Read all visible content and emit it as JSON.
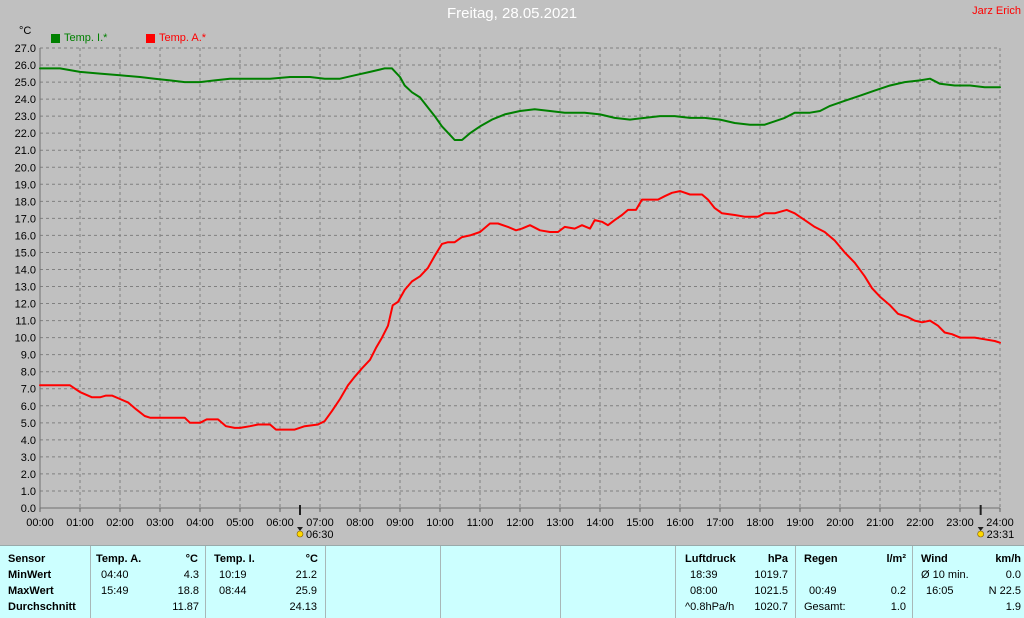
{
  "author": "Jarz Erich",
  "chart_data": {
    "type": "line",
    "title": "Freitag, 28.05.2021",
    "xlabel": "",
    "ylabel": "°C",
    "ylim": [
      0,
      27
    ],
    "xlim": [
      "00:00",
      "24:00"
    ],
    "grid": true,
    "legend": "top-left",
    "x_ticks": [
      "00:00",
      "01:00",
      "02:00",
      "03:00",
      "04:00",
      "05:00",
      "06:00",
      "07:00",
      "08:00",
      "09:00",
      "10:00",
      "11:00",
      "12:00",
      "13:00",
      "14:00",
      "15:00",
      "16:00",
      "17:00",
      "18:00",
      "19:00",
      "20:00",
      "21:00",
      "22:00",
      "23:00",
      "24:00"
    ],
    "y_ticks": [
      "0.0",
      "1.0",
      "2.0",
      "3.0",
      "4.0",
      "5.0",
      "6.0",
      "7.0",
      "8.0",
      "9.0",
      "10.0",
      "11.0",
      "12.0",
      "13.0",
      "14.0",
      "15.0",
      "16.0",
      "17.0",
      "18.0",
      "19.0",
      "20.0",
      "21.0",
      "22.0",
      "23.0",
      "24.0",
      "25.0",
      "26.0",
      "27.0"
    ],
    "markers": [
      {
        "label": "06:30",
        "x": "06:30",
        "icon": "sunrise-icon"
      },
      {
        "label": "23:31",
        "x": "23:31",
        "icon": "sunset-icon"
      }
    ],
    "series": [
      {
        "name": "Temp. I.*",
        "color": "#008000",
        "points": [
          [
            "00:00",
            25.8
          ],
          [
            "00:30",
            25.8
          ],
          [
            "00:45",
            25.7
          ],
          [
            "01:00",
            25.6
          ],
          [
            "01:30",
            25.5
          ],
          [
            "02:00",
            25.4
          ],
          [
            "02:30",
            25.3
          ],
          [
            "02:52",
            25.2
          ],
          [
            "03:15",
            25.1
          ],
          [
            "03:37",
            25.0
          ],
          [
            "04:00",
            25.0
          ],
          [
            "04:22",
            25.1
          ],
          [
            "04:45",
            25.2
          ],
          [
            "05:15",
            25.2
          ],
          [
            "05:45",
            25.2
          ],
          [
            "06:15",
            25.3
          ],
          [
            "06:45",
            25.3
          ],
          [
            "07:07",
            25.2
          ],
          [
            "07:30",
            25.2
          ],
          [
            "07:52",
            25.4
          ],
          [
            "08:15",
            25.6
          ],
          [
            "08:37",
            25.8
          ],
          [
            "08:48",
            25.8
          ],
          [
            "09:00",
            25.3
          ],
          [
            "09:07",
            24.8
          ],
          [
            "09:18",
            24.4
          ],
          [
            "09:30",
            24.1
          ],
          [
            "09:42",
            23.5
          ],
          [
            "09:52",
            23.0
          ],
          [
            "10:03",
            22.4
          ],
          [
            "10:15",
            21.9
          ],
          [
            "10:22",
            21.6
          ],
          [
            "10:33",
            21.6
          ],
          [
            "10:45",
            22.0
          ],
          [
            "11:00",
            22.4
          ],
          [
            "11:18",
            22.8
          ],
          [
            "11:37",
            23.1
          ],
          [
            "12:00",
            23.3
          ],
          [
            "12:22",
            23.4
          ],
          [
            "12:45",
            23.3
          ],
          [
            "13:07",
            23.2
          ],
          [
            "13:37",
            23.2
          ],
          [
            "14:00",
            23.1
          ],
          [
            "14:22",
            22.9
          ],
          [
            "14:45",
            22.8
          ],
          [
            "15:07",
            22.9
          ],
          [
            "15:30",
            23.0
          ],
          [
            "15:52",
            23.0
          ],
          [
            "16:15",
            22.9
          ],
          [
            "16:37",
            22.9
          ],
          [
            "17:00",
            22.8
          ],
          [
            "17:22",
            22.6
          ],
          [
            "17:45",
            22.5
          ],
          [
            "18:07",
            22.5
          ],
          [
            "18:22",
            22.7
          ],
          [
            "18:37",
            22.9
          ],
          [
            "18:52",
            23.2
          ],
          [
            "19:15",
            23.2
          ],
          [
            "19:30",
            23.3
          ],
          [
            "19:45",
            23.6
          ],
          [
            "20:07",
            23.9
          ],
          [
            "20:30",
            24.2
          ],
          [
            "20:52",
            24.5
          ],
          [
            "21:15",
            24.8
          ],
          [
            "21:37",
            25.0
          ],
          [
            "22:00",
            25.1
          ],
          [
            "22:15",
            25.2
          ],
          [
            "22:30",
            24.9
          ],
          [
            "22:52",
            24.8
          ],
          [
            "23:15",
            24.8
          ],
          [
            "23:37",
            24.7
          ],
          [
            "24:00",
            24.7
          ]
        ]
      },
      {
        "name": "Temp. A.*",
        "color": "#ff0000",
        "points": [
          [
            "00:00",
            7.2
          ],
          [
            "00:45",
            7.2
          ],
          [
            "01:00",
            6.8
          ],
          [
            "01:18",
            6.5
          ],
          [
            "01:30",
            6.5
          ],
          [
            "01:39",
            6.6
          ],
          [
            "01:48",
            6.6
          ],
          [
            "02:00",
            6.4
          ],
          [
            "02:12",
            6.2
          ],
          [
            "02:24",
            5.8
          ],
          [
            "02:37",
            5.4
          ],
          [
            "02:45",
            5.3
          ],
          [
            "03:27",
            5.3
          ],
          [
            "03:37",
            5.3
          ],
          [
            "03:45",
            5.0
          ],
          [
            "04:00",
            5.0
          ],
          [
            "04:10",
            5.2
          ],
          [
            "04:27",
            5.2
          ],
          [
            "04:39",
            4.8
          ],
          [
            "04:52",
            4.7
          ],
          [
            "05:00",
            4.7
          ],
          [
            "05:15",
            4.8
          ],
          [
            "05:27",
            4.9
          ],
          [
            "05:45",
            4.9
          ],
          [
            "05:54",
            4.6
          ],
          [
            "06:22",
            4.6
          ],
          [
            "06:37",
            4.8
          ],
          [
            "06:57",
            4.9
          ],
          [
            "07:07",
            5.1
          ],
          [
            "07:18",
            5.7
          ],
          [
            "07:30",
            6.4
          ],
          [
            "07:42",
            7.2
          ],
          [
            "07:52",
            7.7
          ],
          [
            "08:03",
            8.2
          ],
          [
            "08:15",
            8.7
          ],
          [
            "08:24",
            9.4
          ],
          [
            "08:33",
            10.0
          ],
          [
            "08:42",
            10.7
          ],
          [
            "08:49",
            11.9
          ],
          [
            "08:57",
            12.1
          ],
          [
            "09:07",
            12.8
          ],
          [
            "09:18",
            13.3
          ],
          [
            "09:30",
            13.6
          ],
          [
            "09:42",
            14.1
          ],
          [
            "09:52",
            14.8
          ],
          [
            "10:03",
            15.5
          ],
          [
            "10:12",
            15.6
          ],
          [
            "10:22",
            15.6
          ],
          [
            "10:33",
            15.9
          ],
          [
            "10:45",
            16.0
          ],
          [
            "11:00",
            16.2
          ],
          [
            "11:15",
            16.7
          ],
          [
            "11:27",
            16.7
          ],
          [
            "11:42",
            16.5
          ],
          [
            "11:54",
            16.3
          ],
          [
            "12:03",
            16.4
          ],
          [
            "12:15",
            16.6
          ],
          [
            "12:30",
            16.3
          ],
          [
            "12:45",
            16.2
          ],
          [
            "12:57",
            16.2
          ],
          [
            "13:07",
            16.5
          ],
          [
            "13:22",
            16.4
          ],
          [
            "13:33",
            16.6
          ],
          [
            "13:45",
            16.4
          ],
          [
            "13:52",
            16.9
          ],
          [
            "14:03",
            16.8
          ],
          [
            "14:12",
            16.6
          ],
          [
            "14:22",
            16.9
          ],
          [
            "14:33",
            17.2
          ],
          [
            "14:42",
            17.5
          ],
          [
            "14:54",
            17.5
          ],
          [
            "15:03",
            18.1
          ],
          [
            "15:27",
            18.1
          ],
          [
            "15:37",
            18.3
          ],
          [
            "15:48",
            18.5
          ],
          [
            "16:00",
            18.6
          ],
          [
            "16:15",
            18.4
          ],
          [
            "16:33",
            18.4
          ],
          [
            "16:42",
            18.1
          ],
          [
            "16:52",
            17.6
          ],
          [
            "17:03",
            17.3
          ],
          [
            "17:22",
            17.2
          ],
          [
            "17:37",
            17.1
          ],
          [
            "17:57",
            17.1
          ],
          [
            "18:07",
            17.3
          ],
          [
            "18:22",
            17.3
          ],
          [
            "18:40",
            17.5
          ],
          [
            "18:52",
            17.3
          ],
          [
            "19:07",
            16.9
          ],
          [
            "19:22",
            16.5
          ],
          [
            "19:37",
            16.2
          ],
          [
            "19:52",
            15.7
          ],
          [
            "20:07",
            15.0
          ],
          [
            "20:22",
            14.4
          ],
          [
            "20:37",
            13.6
          ],
          [
            "20:48",
            12.9
          ],
          [
            "21:00",
            12.4
          ],
          [
            "21:15",
            11.9
          ],
          [
            "21:27",
            11.4
          ],
          [
            "21:42",
            11.2
          ],
          [
            "21:52",
            11.0
          ],
          [
            "22:03",
            10.9
          ],
          [
            "22:15",
            11.0
          ],
          [
            "22:27",
            10.7
          ],
          [
            "22:37",
            10.3
          ],
          [
            "22:48",
            10.2
          ],
          [
            "23:00",
            10.0
          ],
          [
            "23:22",
            10.0
          ],
          [
            "23:37",
            9.9
          ],
          [
            "23:52",
            9.8
          ],
          [
            "24:00",
            9.7
          ]
        ]
      }
    ]
  },
  "table": {
    "row_labels": [
      "Sensor",
      "MinWert",
      "MaxWert",
      "Durchschnitt"
    ],
    "temp_a": {
      "header": "Temp. A.",
      "unit": "°C",
      "min_time": "04:40",
      "min": "4.3",
      "max_time": "15:49",
      "max": "18.8",
      "avg": "11.87"
    },
    "temp_i": {
      "header": "Temp. I.",
      "unit": "°C",
      "min_time": "10:19",
      "min": "21.2",
      "max_time": "08:44",
      "max": "25.9",
      "avg": "24.13"
    },
    "pressure": {
      "header": "Luftdruck",
      "unit": "hPa",
      "min_time": "18:39",
      "min": "1019.7",
      "max_time": "08:00",
      "max": "1021.5",
      "trend": "^0.8hPa/h",
      "avg": "1020.7"
    },
    "rain": {
      "header": "Regen",
      "unit": "l/m²",
      "max_time": "00:49",
      "max": "0.2",
      "total_label": "Gesamt:",
      "total": "1.0"
    },
    "wind": {
      "header": "Wind",
      "unit": "km/h",
      "avg10_label": "Ø 10 min.",
      "avg10": "0.0",
      "max_time": "16:05",
      "max": "N 22.5",
      "avg": "1.9"
    }
  }
}
